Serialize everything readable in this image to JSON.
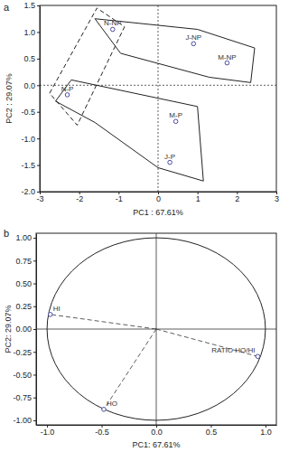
{
  "chart_data": [
    {
      "type": "scatter",
      "title": "a",
      "x_label": "PC1 : 67.61%",
      "y_label": "PC2 : 29.07%",
      "xlim": [
        -3,
        3
      ],
      "xticks": [
        -3,
        -2,
        -1,
        0,
        1,
        2,
        3
      ],
      "ylim": [
        -2.0,
        1.5
      ],
      "yticks": [
        {
          "value": -2.0,
          "label": "-2.0"
        },
        {
          "value": -1.5,
          "label": "-1.5"
        },
        {
          "value": -1.0,
          "label": "-1.0"
        },
        {
          "value": -0.5,
          "label": "-0.5"
        },
        {
          "value": 0.0,
          "label": "0.0"
        },
        {
          "value": 0.5,
          "label": "0.5"
        },
        {
          "value": 1.0,
          "label": "1.0"
        },
        {
          "value": 1.5,
          "label": "1.5"
        }
      ],
      "ref_lines": [
        {
          "axis": "x",
          "value": 0,
          "line_style": "dotted"
        },
        {
          "axis": "y",
          "value": 0,
          "line_style": "dotted"
        }
      ],
      "series": [
        {
          "type": "polygon",
          "color": "#222222",
          "line_style": "solid",
          "x": [
            -1.6,
            1.0,
            2.45,
            2.35,
            1.3,
            -0.95
          ],
          "values": [
            1.25,
            1.05,
            0.7,
            0.05,
            0.15,
            0.6
          ]
        },
        {
          "type": "polygon",
          "color": "#222222",
          "line_style": "solid",
          "x": [
            -2.6,
            -2.2,
            1.0,
            1.15,
            0.0,
            -1.6
          ],
          "values": [
            -0.3,
            0.1,
            -0.4,
            -1.8,
            -1.55,
            -0.7
          ]
        },
        {
          "type": "polygon",
          "color": "#222222",
          "line_style": "dashed",
          "x": [
            -2.75,
            -1.55,
            -0.85,
            -2.05
          ],
          "values": [
            -0.15,
            1.45,
            1.1,
            -0.75
          ]
        },
        {
          "type": "scatter",
          "color": "#4a4aa0",
          "marker": "circle",
          "labels": [
            "N-NP",
            "N-P",
            "J-NP",
            "M-NP",
            "M-P",
            "J-P"
          ],
          "x": [
            -1.15,
            -2.3,
            0.9,
            1.75,
            0.45,
            0.3
          ],
          "values": [
            1.05,
            -0.18,
            0.78,
            0.42,
            -0.68,
            -1.45
          ]
        }
      ]
    },
    {
      "type": "scatter",
      "title": "b",
      "x_label": "PC1: 67.61%",
      "y_label": "PC2: 29.07%",
      "xlim": [
        -1.1,
        1.1
      ],
      "xticks": [
        {
          "value": -1.0,
          "label": "-1.0"
        },
        {
          "value": -0.5,
          "label": "-0.5"
        },
        {
          "value": 0.0,
          "label": "0.0"
        },
        {
          "value": 0.5,
          "label": "0.5"
        },
        {
          "value": 1.0,
          "label": "1.0"
        }
      ],
      "ylim": [
        -1.05,
        1.05
      ],
      "yticks": [
        {
          "value": -1.0,
          "label": "-1.00"
        },
        {
          "value": -0.75,
          "label": "-0.75"
        },
        {
          "value": -0.5,
          "label": "-0.50"
        },
        {
          "value": -0.25,
          "label": "-0.25"
        },
        {
          "value": 0.0,
          "label": "0.00"
        },
        {
          "value": 0.25,
          "label": "0.25"
        },
        {
          "value": 0.5,
          "label": "0.50"
        },
        {
          "value": 0.75,
          "label": "0.75"
        },
        {
          "value": 1.0,
          "label": "1.00"
        }
      ],
      "ref_lines": [
        {
          "axis": "x",
          "value": 0,
          "line_style": "solid"
        },
        {
          "axis": "y",
          "value": 0,
          "line_style": "solid"
        }
      ],
      "circle": {
        "center_x": 0,
        "center_y": 0,
        "radius": 1
      },
      "series": [
        {
          "type": "vector",
          "color": "#4a4aa0",
          "marker": "circle",
          "line_style": "dashed",
          "from_x": 0,
          "from_y": 0,
          "labels": [
            "HI",
            "HO",
            "RATIO HO/HI"
          ],
          "x": [
            -0.97,
            -0.48,
            0.93
          ],
          "values": [
            0.16,
            -0.88,
            -0.3
          ]
        }
      ]
    }
  ]
}
